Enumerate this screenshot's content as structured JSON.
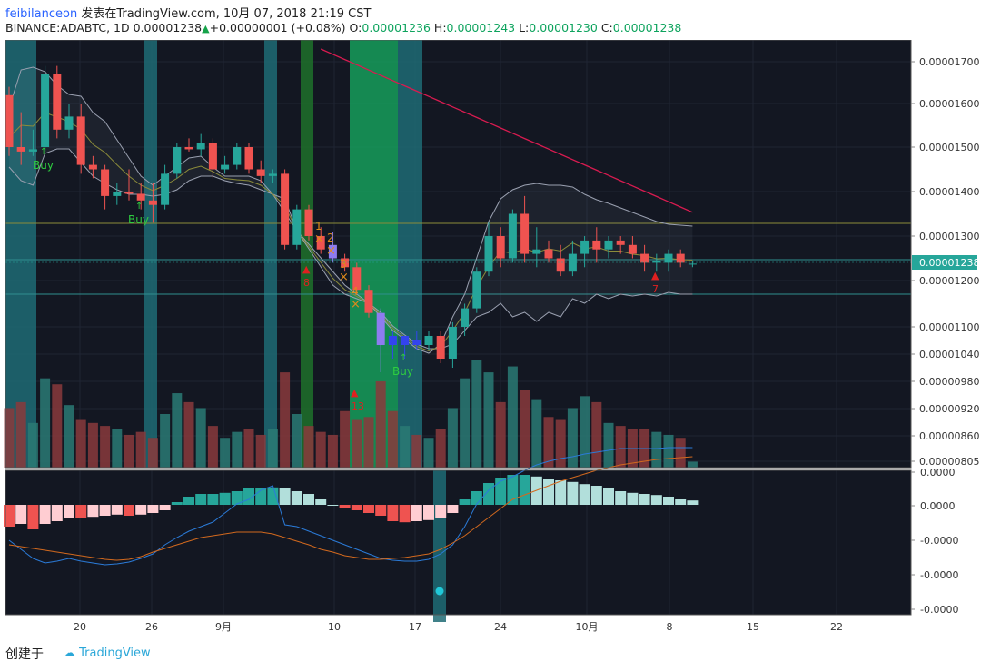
{
  "header": {
    "author": "feibilanceon",
    "published_text": "发表在TradingView.com, 10月 07, 2018 21:19 CST",
    "symbol": "BINANCE:ADABTC, 1D",
    "last": "0.00001238",
    "change": "+0.00000001 (+0.08%)",
    "o_label": "O:",
    "o_value": "0.00001236",
    "h_label": "H:",
    "h_value": "0.00001243",
    "l_label": "L:",
    "l_value": "0.00001230",
    "c_label": "C:",
    "c_value": "0.00001238"
  },
  "price_axis": {
    "labels": [
      "0.00001700",
      "0.00001600",
      "0.00001500",
      "0.00001400",
      "0.00001300",
      "0.00001200",
      "0.00001100",
      "0.00001040",
      "0.00000980",
      "0.00000920",
      "0.00000860",
      "0.00000805"
    ],
    "current_price_label": "0.00001238"
  },
  "indicator_axis": {
    "labels": [
      "0.0000",
      "0.0000",
      "-0.0000",
      "-0.0000",
      "-0.0000"
    ]
  },
  "time_axis": {
    "labels": [
      "20",
      "26",
      "9月",
      "10",
      "17",
      "24",
      "10月",
      "8",
      "15",
      "22"
    ]
  },
  "annotations": {
    "buy_labels": [
      "Buy",
      "Buy",
      "Buy"
    ],
    "td_counts": [
      "1",
      "2",
      "3",
      "4"
    ],
    "red_counts": [
      "8",
      "13",
      "7"
    ]
  },
  "colors": {
    "bull": "#26a69a",
    "bear": "#ef5350",
    "background": "#131722",
    "teal_band": "#1e6b74",
    "green_band": "#16a65f",
    "ma": "#d81b50"
  },
  "chart_data": {
    "type": "candlestick",
    "candles": [
      [
        1.62e-05,
        1.64e-05,
        1.48e-05,
        1.5e-05
      ],
      [
        1.5e-05,
        1.58e-05,
        1.46e-05,
        1.49e-05
      ],
      [
        1.49e-05,
        1.54e-05,
        1.48e-05,
        1.495e-05
      ],
      [
        1.5e-05,
        1.69e-05,
        1.49e-05,
        1.67e-05
      ],
      [
        1.67e-05,
        1.69e-05,
        1.52e-05,
        1.54e-05
      ],
      [
        1.54e-05,
        1.6e-05,
        1.52e-05,
        1.57e-05
      ],
      [
        1.57e-05,
        1.6e-05,
        1.44e-05,
        1.46e-05
      ],
      [
        1.46e-05,
        1.48e-05,
        1.43e-05,
        1.45e-05
      ],
      [
        1.45e-05,
        1.46e-05,
        1.36e-05,
        1.39e-05
      ],
      [
        1.39e-05,
        1.42e-05,
        1.37e-05,
        1.4e-05
      ],
      [
        1.4e-05,
        1.45e-05,
        1.38e-05,
        1.395e-05
      ],
      [
        1.395e-05,
        1.42e-05,
        1.36e-05,
        1.38e-05
      ],
      [
        1.38e-05,
        1.42e-05,
        1.33e-05,
        1.37e-05
      ],
      [
        1.37e-05,
        1.46e-05,
        1.36e-05,
        1.44e-05
      ],
      [
        1.44e-05,
        1.51e-05,
        1.43e-05,
        1.5e-05
      ],
      [
        1.5e-05,
        1.52e-05,
        1.49e-05,
        1.495e-05
      ],
      [
        1.495e-05,
        1.53e-05,
        1.48e-05,
        1.51e-05
      ],
      [
        1.51e-05,
        1.52e-05,
        1.43e-05,
        1.45e-05
      ],
      [
        1.45e-05,
        1.48e-05,
        1.44e-05,
        1.46e-05
      ],
      [
        1.46e-05,
        1.51e-05,
        1.45e-05,
        1.5e-05
      ],
      [
        1.5e-05,
        1.51e-05,
        1.44e-05,
        1.45e-05
      ],
      [
        1.45e-05,
        1.47e-05,
        1.42e-05,
        1.435e-05
      ],
      [
        1.435e-05,
        1.45e-05,
        1.42e-05,
        1.44e-05
      ],
      [
        1.44e-05,
        1.45e-05,
        1.27e-05,
        1.28e-05
      ],
      [
        1.28e-05,
        1.37e-05,
        1.27e-05,
        1.36e-05
      ],
      [
        1.36e-05,
        1.37e-05,
        1.29e-05,
        1.3e-05
      ],
      [
        1.3e-05,
        1.32e-05,
        1.26e-05,
        1.27e-05
      ],
      [
        1.28e-05,
        1.31e-05,
        1.24e-05,
        1.25e-05
      ],
      [
        1.25e-05,
        1.26e-05,
        1.22e-05,
        1.23e-05
      ],
      [
        1.23e-05,
        1.24e-05,
        1.17e-05,
        1.18e-05
      ],
      [
        1.18e-05,
        1.19e-05,
        1.12e-05,
        1.13e-05
      ],
      [
        1.13e-05,
        1.14e-05,
        1e-05,
        1.06e-05
      ],
      [
        1.08e-05,
        1.09e-05,
        1.03e-05,
        1.06e-05
      ],
      [
        1.06e-05,
        1.08e-05,
        1.03e-05,
        1.08e-05
      ],
      [
        1.07e-05,
        1.09e-05,
        1.05e-05,
        1.06e-05
      ],
      [
        1.06e-05,
        1.09e-05,
        1.05e-05,
        1.08e-05
      ],
      [
        1.08e-05,
        1.09e-05,
        1.02e-05,
        1.03e-05
      ],
      [
        1.03e-05,
        1.11e-05,
        1.01e-05,
        1.1e-05
      ],
      [
        1.1e-05,
        1.15e-05,
        1.08e-05,
        1.14e-05
      ],
      [
        1.14e-05,
        1.23e-05,
        1.13e-05,
        1.22e-05
      ],
      [
        1.22e-05,
        1.33e-05,
        1.21e-05,
        1.3e-05
      ],
      [
        1.3e-05,
        1.32e-05,
        1.23e-05,
        1.25e-05
      ],
      [
        1.25e-05,
        1.36e-05,
        1.24e-05,
        1.35e-05
      ],
      [
        1.35e-05,
        1.39e-05,
        1.24e-05,
        1.26e-05
      ],
      [
        1.26e-05,
        1.32e-05,
        1.23e-05,
        1.27e-05
      ],
      [
        1.27e-05,
        1.29e-05,
        1.24e-05,
        1.25e-05
      ],
      [
        1.25e-05,
        1.28e-05,
        1.21e-05,
        1.22e-05
      ],
      [
        1.22e-05,
        1.29e-05,
        1.21e-05,
        1.26e-05
      ],
      [
        1.26e-05,
        1.3e-05,
        1.23e-05,
        1.29e-05
      ],
      [
        1.29e-05,
        1.32e-05,
        1.24e-05,
        1.27e-05
      ],
      [
        1.27e-05,
        1.3e-05,
        1.25e-05,
        1.29e-05
      ],
      [
        1.29e-05,
        1.3e-05,
        1.26e-05,
        1.28e-05
      ],
      [
        1.28e-05,
        1.3e-05,
        1.25e-05,
        1.26e-05
      ],
      [
        1.26e-05,
        1.28e-05,
        1.22e-05,
        1.24e-05
      ],
      [
        1.24e-05,
        1.26e-05,
        1.22e-05,
        1.245e-05
      ],
      [
        1.24e-05,
        1.27e-05,
        1.22e-05,
        1.26e-05
      ],
      [
        1.26e-05,
        1.27e-05,
        1.23e-05,
        1.24e-05
      ],
      [
        1.236e-05,
        1.243e-05,
        1.23e-05,
        1.238e-05
      ]
    ],
    "volume": [
      20,
      22,
      15,
      30,
      28,
      21,
      16,
      15,
      14,
      13,
      11,
      12,
      10,
      18,
      25,
      22,
      20,
      14,
      10,
      12,
      13,
      11,
      13,
      32,
      18,
      14,
      12,
      11,
      19,
      16,
      17,
      29,
      19,
      14,
      11,
      10,
      13,
      20,
      30,
      36,
      32,
      22,
      34,
      26,
      23,
      17,
      16,
      20,
      24,
      22,
      15,
      14,
      13,
      13,
      12,
      11,
      10,
      2
    ],
    "macd": [
      -40,
      -35,
      -45,
      -35,
      -30,
      -25,
      -25,
      -22,
      -20,
      -18,
      -20,
      -18,
      -15,
      -10,
      5,
      15,
      20,
      20,
      22,
      25,
      30,
      30,
      32,
      30,
      25,
      20,
      10,
      0,
      -5,
      -10,
      -15,
      -20,
      -30,
      -32,
      -30,
      -28,
      -25,
      -15,
      10,
      25,
      40,
      50,
      55,
      55,
      52,
      48,
      45,
      42,
      38,
      35,
      30,
      25,
      22,
      20,
      18,
      15,
      10,
      8
    ],
    "ylim_price": [
      8.05e-06,
      1.72e-05
    ]
  }
}
